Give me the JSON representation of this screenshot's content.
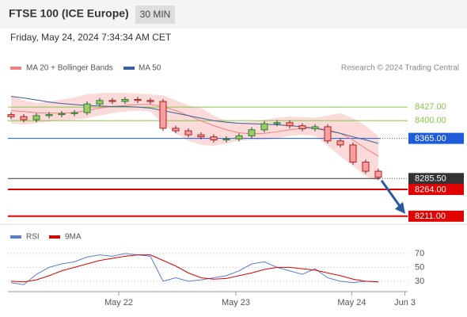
{
  "chart_data": {
    "type": "candlestick",
    "title": "FTSE 100 (ICE Europe)",
    "timeframe": "30 MIN",
    "date": "Friday, May 24, 2024 7:34:34 AM CET",
    "copyright": "Research © 2024 Trading Central",
    "xlim": [
      -0.125,
      31.125
    ],
    "xticks": [
      {
        "value": 8.5,
        "label": "May 22"
      },
      {
        "value": 17.75,
        "label": "May 23"
      },
      {
        "value": 26.9,
        "label": "May 24"
      },
      {
        "value": 31.1,
        "label": "Jun 3"
      }
    ],
    "ylim": [
      8195,
      8482
    ],
    "candles": {
      "open": [
        8412,
        8408,
        8402,
        8410,
        8412,
        8414,
        8416,
        8433,
        8440,
        8438,
        8442,
        8440,
        8438,
        8385,
        8380,
        8372,
        8368,
        8362,
        8364,
        8370,
        8382,
        8394,
        8396,
        8390,
        8384,
        8388,
        8360,
        8352,
        8318,
        8300
      ],
      "high": [
        8417,
        8413,
        8415,
        8417,
        8419,
        8421,
        8438,
        8445,
        8445,
        8447,
        8447,
        8445,
        8443,
        8390,
        8385,
        8377,
        8373,
        8369,
        8375,
        8387,
        8399,
        8401,
        8401,
        8395,
        8393,
        8393,
        8365,
        8357,
        8323,
        8305
      ],
      "low": [
        8403,
        8397,
        8397,
        8405,
        8407,
        8409,
        8411,
        8428,
        8433,
        8433,
        8435,
        8433,
        8380,
        8375,
        8367,
        8363,
        8357,
        8357,
        8359,
        8365,
        8377,
        8389,
        8385,
        8379,
        8379,
        8355,
        8347,
        8313,
        8295,
        8283
      ],
      "close": [
        8408,
        8402,
        8410,
        8412,
        8414,
        8416,
        8433,
        8440,
        8438,
        8442,
        8440,
        8438,
        8385,
        8380,
        8372,
        8368,
        8362,
        8364,
        8370,
        8382,
        8394,
        8396,
        8390,
        8384,
        8388,
        8360,
        8352,
        8318,
        8300,
        8288
      ],
      "up_color": "#2e7d32",
      "down_color": "#b71c1c"
    },
    "bands": {
      "name": "MA 20 + Bollinger Bands",
      "color": "#f08080",
      "fill": "#fbdada",
      "upper": [
        8450,
        8440,
        8435,
        8438,
        8442,
        8446,
        8452,
        8455,
        8455,
        8455,
        8454,
        8452,
        8450,
        8440,
        8430,
        8425,
        8410,
        8400,
        8396,
        8398,
        8402,
        8406,
        8408,
        8407,
        8406,
        8410,
        8415,
        8405,
        8390,
        8370
      ],
      "lower": [
        8395,
        8392,
        8395,
        8398,
        8400,
        8402,
        8405,
        8410,
        8415,
        8418,
        8420,
        8418,
        8395,
        8375,
        8360,
        8352,
        8350,
        8355,
        8360,
        8362,
        8362,
        8365,
        8370,
        8372,
        8370,
        8350,
        8330,
        8310,
        8290,
        8280
      ],
      "values": [
        8420,
        8418,
        8416,
        8415,
        8415,
        8416,
        8420,
        8425,
        8428,
        8430,
        8432,
        8432,
        8428,
        8420,
        8410,
        8400,
        8390,
        8382,
        8376,
        8374,
        8375,
        8378,
        8382,
        8385,
        8386,
        8382,
        8375,
        8362,
        8345,
        8330
      ]
    },
    "ma50": {
      "name": "MA 50",
      "color": "#3a5f9e",
      "values": [
        8448,
        8445,
        8441,
        8437,
        8434,
        8432,
        8430,
        8429,
        8428,
        8428,
        8427,
        8425,
        8420,
        8415,
        8410,
        8405,
        8400,
        8397,
        8395,
        8394,
        8393,
        8392,
        8390,
        8388,
        8385,
        8380,
        8375,
        8368,
        8362,
        8355
      ]
    },
    "levels": [
      {
        "value": 8427,
        "label": "8427.00",
        "color": "#8bc34a",
        "box": false,
        "dotted": false
      },
      {
        "value": 8400,
        "label": "8400.00",
        "color": "#8bc34a",
        "box": false,
        "dotted": false
      },
      {
        "value": 8365,
        "label": "8365.00",
        "color": "#1e5bd8",
        "box": true,
        "dotted": true
      },
      {
        "value": 8285.5,
        "label": "8285.50",
        "color": "#333333",
        "box": true,
        "dotted": true
      },
      {
        "value": 8264,
        "label": "8264.00",
        "color": "#e00000",
        "box": true,
        "dotted": false
      },
      {
        "value": 8211,
        "label": "8211.00",
        "color": "#e00000",
        "box": true,
        "dotted": false
      }
    ],
    "arrow_color": "#2a5aa0",
    "rsi": {
      "ylim": [
        15,
        87
      ],
      "yticks": [
        30,
        50,
        70
      ],
      "series": [
        {
          "name": "RSI",
          "color": "#5b7fd6",
          "values": [
            28,
            25,
            40,
            50,
            55,
            58,
            65,
            68,
            66,
            70,
            68,
            66,
            30,
            35,
            30,
            32,
            35,
            38,
            45,
            55,
            58,
            50,
            45,
            40,
            48,
            35,
            30,
            28,
            30,
            29
          ]
        },
        {
          "name": "9MA",
          "color": "#e00000",
          "values": [
            30,
            29,
            32,
            38,
            45,
            50,
            55,
            60,
            63,
            66,
            68,
            68,
            60,
            52,
            42,
            35,
            33,
            34,
            38,
            42,
            47,
            50,
            50,
            48,
            46,
            42,
            38,
            33,
            30,
            29
          ]
        }
      ]
    }
  }
}
